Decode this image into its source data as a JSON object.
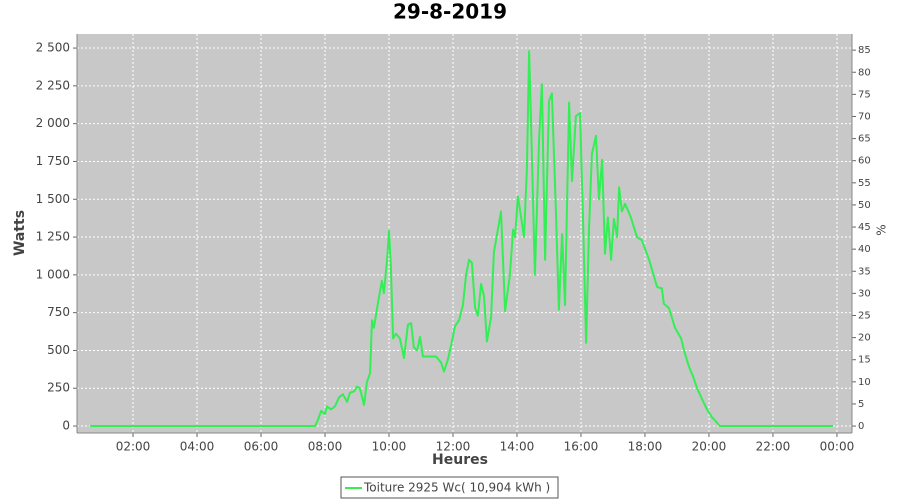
{
  "chart_data": {
    "type": "line",
    "title": "29-8-2019",
    "x_label": "Heures",
    "y_label": "Watts",
    "y2_label": "%",
    "xlim": [
      0.25,
      24.47
    ],
    "xticks": [
      {
        "value": 2,
        "label": "02:00"
      },
      {
        "value": 4,
        "label": "04:00"
      },
      {
        "value": 6,
        "label": "06:00"
      },
      {
        "value": 8,
        "label": "08:00"
      },
      {
        "value": 10,
        "label": "10:00"
      },
      {
        "value": 12,
        "label": "12:00"
      },
      {
        "value": 14,
        "label": "14:00"
      },
      {
        "value": 16,
        "label": "16:00"
      },
      {
        "value": 18,
        "label": "18:00"
      },
      {
        "value": 20,
        "label": "20:00"
      },
      {
        "value": 22,
        "label": "22:00"
      },
      {
        "value": 24,
        "label": "00:00"
      }
    ],
    "ylim": [
      -46,
      2593
    ],
    "yticks": [
      0,
      250,
      500,
      750,
      {
        "value": 1000,
        "label": "1 000"
      },
      {
        "value": 1250,
        "label": "1 250"
      },
      {
        "value": 1500,
        "label": "1 500"
      },
      {
        "value": 1750,
        "label": "1 750"
      },
      {
        "value": 2000,
        "label": "2 000"
      },
      {
        "value": 2250,
        "label": "2 250"
      },
      {
        "value": 2500,
        "label": "2 500"
      }
    ],
    "y2lim": [
      -1.57,
      88.65
    ],
    "y2ticks": [
      0,
      5,
      10,
      15,
      20,
      25,
      30,
      35,
      40,
      45,
      50,
      55,
      60,
      65,
      70,
      75,
      80,
      85
    ],
    "grid": true,
    "x": [
      0.66,
      7.69,
      7.78,
      7.88,
      8.0,
      8.06,
      8.19,
      8.31,
      8.44,
      8.56,
      8.69,
      8.78,
      8.91,
      9.0,
      9.09,
      9.22,
      9.31,
      9.41,
      9.47,
      9.53,
      9.66,
      9.78,
      9.84,
      9.94,
      10.0,
      10.06,
      10.13,
      10.22,
      10.34,
      10.47,
      10.59,
      10.69,
      10.78,
      10.88,
      10.97,
      11.06,
      11.22,
      11.47,
      11.63,
      11.72,
      11.84,
      11.97,
      12.06,
      12.19,
      12.31,
      12.41,
      12.5,
      12.59,
      12.69,
      12.78,
      12.88,
      12.97,
      13.06,
      13.19,
      13.28,
      13.38,
      13.5,
      13.63,
      13.78,
      13.88,
      13.94,
      14.03,
      14.13,
      14.22,
      14.31,
      14.38,
      14.44,
      14.56,
      14.69,
      14.78,
      14.88,
      15.0,
      15.09,
      15.22,
      15.31,
      15.41,
      15.5,
      15.63,
      15.72,
      15.84,
      15.97,
      16.06,
      16.16,
      16.25,
      16.34,
      16.47,
      16.56,
      16.66,
      16.75,
      16.84,
      16.94,
      17.03,
      17.13,
      17.19,
      17.28,
      17.38,
      17.56,
      17.75,
      17.9,
      18.13,
      18.38,
      18.53,
      18.59,
      18.75,
      18.94,
      19.13,
      19.22,
      19.38,
      19.5,
      19.63,
      19.78,
      19.94,
      20.09,
      20.22,
      20.34,
      23.88
    ],
    "series": [
      {
        "name": "Toiture 2925 Wc( 10,904 kWh )",
        "color": "#33ee55",
        "axis": "y",
        "values": [
          0,
          0,
          40,
          100,
          80,
          130,
          110,
          130,
          190,
          210,
          160,
          220,
          230,
          260,
          250,
          140,
          290,
          350,
          700,
          650,
          820,
          960,
          880,
          1100,
          1290,
          1050,
          580,
          610,
          580,
          450,
          670,
          680,
          520,
          500,
          590,
          460,
          460,
          460,
          420,
          360,
          440,
          560,
          660,
          700,
          800,
          1000,
          1100,
          1080,
          780,
          730,
          940,
          860,
          560,
          720,
          1150,
          1270,
          1420,
          760,
          1000,
          1300,
          1250,
          1520,
          1380,
          1250,
          1700,
          2480,
          2000,
          1000,
          1900,
          2260,
          1100,
          2150,
          2200,
          1400,
          770,
          1270,
          800,
          2140,
          1620,
          2050,
          2070,
          1400,
          550,
          1300,
          1800,
          1920,
          1500,
          1760,
          1140,
          1380,
          1100,
          1370,
          1250,
          1580,
          1420,
          1470,
          1380,
          1250,
          1230,
          1100,
          920,
          910,
          810,
          780,
          650,
          580,
          500,
          390,
          330,
          250,
          180,
          110,
          60,
          30,
          0,
          0
        ]
      }
    ]
  }
}
